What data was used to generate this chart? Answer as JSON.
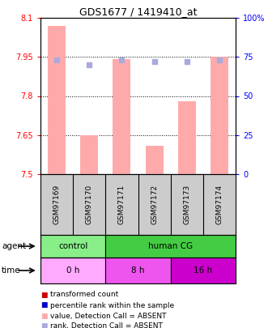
{
  "title": "GDS1677 / 1419410_at",
  "samples": [
    "GSM97169",
    "GSM97170",
    "GSM97171",
    "GSM97172",
    "GSM97173",
    "GSM97174"
  ],
  "bar_values": [
    8.07,
    7.65,
    7.94,
    7.61,
    7.78,
    7.95
  ],
  "rank_values": [
    73,
    70,
    73,
    72,
    72,
    73
  ],
  "ylim_left": [
    7.5,
    8.1
  ],
  "ylim_right": [
    0,
    100
  ],
  "yticks_left": [
    7.5,
    7.65,
    7.8,
    7.95,
    8.1
  ],
  "yticks_right": [
    0,
    25,
    50,
    75,
    100
  ],
  "ytick_labels_left": [
    "7.5",
    "7.65",
    "7.8",
    "7.95",
    "8.1"
  ],
  "ytick_labels_right": [
    "0",
    "25",
    "50",
    "75",
    "100%"
  ],
  "hlines": [
    7.65,
    7.8,
    7.95
  ],
  "bar_color": "#ffaaaa",
  "rank_color": "#aaaadd",
  "agent_groups": [
    {
      "label": "control",
      "start": 0,
      "end": 2,
      "color": "#88ee88"
    },
    {
      "label": "human CG",
      "start": 2,
      "end": 6,
      "color": "#44cc44"
    }
  ],
  "time_colors": [
    "#ffaaff",
    "#ee55ee",
    "#cc00cc"
  ],
  "time_groups": [
    {
      "label": "0 h",
      "start": 0,
      "end": 2
    },
    {
      "label": "8 h",
      "start": 2,
      "end": 4
    },
    {
      "label": "16 h",
      "start": 4,
      "end": 6
    }
  ],
  "agent_label": "agent",
  "time_label": "time",
  "legend_colors": [
    "#cc0000",
    "#0000cc",
    "#ffaaaa",
    "#aaaadd"
  ],
  "legend_labels": [
    "transformed count",
    "percentile rank within the sample",
    "value, Detection Call = ABSENT",
    "rank, Detection Call = ABSENT"
  ],
  "sample_bg": "#cccccc"
}
